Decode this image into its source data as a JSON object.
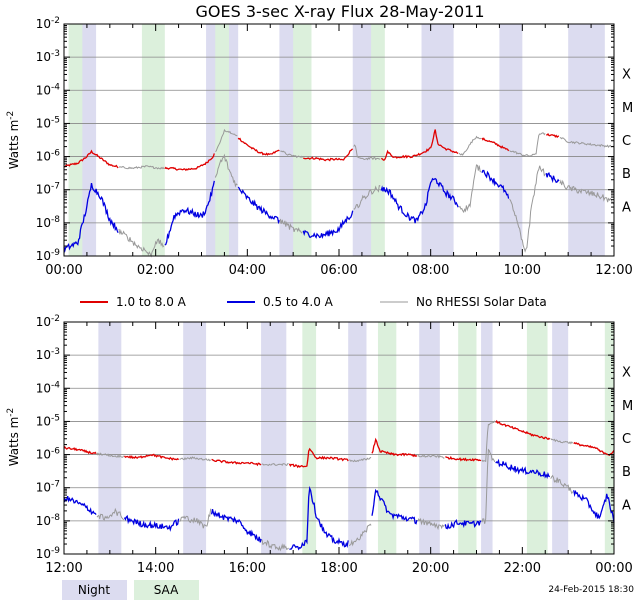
{
  "title": "GOES 3-sec X-ray Flux   28-May-2011",
  "footer_timestamp": "24-Feb-2015 18:30",
  "colors": {
    "long": "#e00000",
    "short": "#0000e0",
    "norhessi": "#999999",
    "night": "#dcdcf0",
    "saa": "#dcf0dc",
    "grid": "#888888"
  },
  "legend": {
    "long": "1.0 to 8.0 A",
    "short": "0.5 to 4.0 A",
    "norhessi": "No RHESSI Solar Data"
  },
  "bottom_legend": {
    "night": "Night",
    "saa": "SAA"
  },
  "chart_data": [
    {
      "type": "line",
      "panel": "top",
      "ylabel": "Watts m^-2",
      "ylim_exp": [
        -9,
        -2
      ],
      "y_ticks": [
        "10-9",
        "10-8",
        "10-7",
        "10-6",
        "10-5",
        "10-4",
        "10-3",
        "10-2"
      ],
      "xlim_hours": [
        0,
        12
      ],
      "x_ticks": [
        "00:00",
        "02:00",
        "04:00",
        "06:00",
        "08:00",
        "10:00",
        "12:00"
      ],
      "flare_classes": [
        "A",
        "B",
        "C",
        "M",
        "X"
      ],
      "night_intervals": [
        [
          0.15,
          0.7
        ],
        [
          3.1,
          3.8
        ],
        [
          4.7,
          5.3
        ],
        [
          6.3,
          6.8
        ],
        [
          7.8,
          8.5
        ],
        [
          9.5,
          10.0
        ],
        [
          11.0,
          11.8
        ]
      ],
      "saa_intervals": [
        [
          0.1,
          0.4
        ],
        [
          1.7,
          2.2
        ],
        [
          3.3,
          3.6
        ],
        [
          5.0,
          5.4
        ],
        [
          6.7,
          7.0
        ]
      ],
      "series": [
        {
          "name": "1.0 to 8.0 A",
          "key": "long",
          "x": [
            0.0,
            0.3,
            0.5,
            0.6,
            0.8,
            1.0,
            1.2,
            1.5,
            1.8,
            2.1,
            2.3,
            2.6,
            2.9,
            3.1,
            3.25,
            3.4,
            3.5,
            3.7,
            3.9,
            4.1,
            4.3,
            4.5,
            4.7,
            4.9,
            5.1,
            5.3,
            5.5,
            5.7,
            5.9,
            6.1,
            6.35,
            6.4,
            6.5,
            6.7,
            6.9,
            7.0,
            7.05,
            7.2,
            7.4,
            7.6,
            7.8,
            8.0,
            8.1,
            8.15,
            8.3,
            8.5,
            8.7,
            8.9,
            9.0,
            9.2,
            9.4,
            9.6,
            9.8,
            10.0,
            10.2,
            10.3,
            10.35,
            10.4,
            10.6,
            10.8,
            11.0,
            11.3,
            11.6,
            12.0
          ],
          "log10": [
            -6.3,
            -6.2,
            -6.0,
            -5.85,
            -6.05,
            -6.25,
            -6.32,
            -6.35,
            -6.3,
            -6.35,
            -6.35,
            -6.4,
            -6.35,
            -6.2,
            -6.0,
            -5.6,
            -5.2,
            -5.3,
            -5.55,
            -5.75,
            -5.9,
            -5.95,
            -5.8,
            -5.95,
            -6.0,
            -6.05,
            -6.05,
            -6.1,
            -6.08,
            -6.1,
            -5.65,
            -6.0,
            -6.08,
            -6.05,
            -6.07,
            -6.1,
            -5.85,
            -6.02,
            -6.0,
            -6.0,
            -5.9,
            -5.75,
            -5.2,
            -5.6,
            -5.75,
            -5.85,
            -5.95,
            -5.55,
            -5.4,
            -5.5,
            -5.6,
            -5.75,
            -5.85,
            -5.95,
            -5.98,
            -5.9,
            -5.4,
            -5.3,
            -5.35,
            -5.4,
            -5.55,
            -5.6,
            -5.65,
            -5.7
          ]
        },
        {
          "name": "0.5 to 4.0 A",
          "key": "short",
          "x": [
            0.0,
            0.3,
            0.5,
            0.6,
            0.8,
            1.0,
            1.2,
            1.4,
            1.6,
            1.75,
            1.9,
            2.0,
            2.1,
            2.2,
            2.25,
            2.4,
            2.6,
            2.8,
            3.0,
            3.1,
            3.2,
            3.3,
            3.4,
            3.5,
            3.6,
            3.7,
            3.8,
            4.0,
            4.2,
            4.4,
            4.6,
            4.8,
            5.0,
            5.2,
            5.4,
            5.6,
            5.8,
            6.0,
            6.1,
            6.3,
            6.5,
            6.7,
            6.9,
            7.1,
            7.3,
            7.5,
            7.7,
            7.9,
            8.0,
            8.1,
            8.15,
            8.3,
            8.5,
            8.7,
            8.85,
            9.0,
            9.2,
            9.4,
            9.6,
            9.8,
            9.95,
            10.0,
            10.05,
            10.1,
            10.2,
            10.3,
            10.35,
            10.4,
            10.45,
            10.6,
            10.8,
            11.0,
            11.3,
            11.6,
            11.8,
            12.0
          ],
          "log10": [
            -8.8,
            -8.6,
            -7.5,
            -6.85,
            -7.2,
            -7.9,
            -8.25,
            -8.45,
            -8.7,
            -8.8,
            -9.0,
            -8.55,
            -8.6,
            -8.7,
            -8.5,
            -7.8,
            -7.6,
            -7.7,
            -7.8,
            -7.6,
            -7.2,
            -6.7,
            -6.2,
            -6.0,
            -6.4,
            -6.7,
            -6.95,
            -7.25,
            -7.5,
            -7.7,
            -7.85,
            -8.0,
            -8.2,
            -8.3,
            -8.35,
            -8.4,
            -8.3,
            -8.2,
            -8.0,
            -7.7,
            -7.3,
            -7.05,
            -6.95,
            -7.05,
            -7.5,
            -7.8,
            -7.95,
            -7.45,
            -6.75,
            -6.7,
            -6.75,
            -7.05,
            -7.3,
            -7.6,
            -7.5,
            -6.3,
            -6.5,
            -6.75,
            -7.0,
            -7.55,
            -8.3,
            -8.6,
            -8.9,
            -8.7,
            -7.5,
            -6.8,
            -6.3,
            -6.4,
            -6.45,
            -6.6,
            -6.75,
            -6.95,
            -7.05,
            -7.15,
            -7.25,
            -7.4
          ]
        },
        {
          "name": "No RHESSI Solar Data",
          "key": "norhessi",
          "x_intervals": [
            [
              1.2,
              2.2
            ],
            [
              3.3,
              3.8
            ],
            [
              4.7,
              5.2
            ],
            [
              6.3,
              6.9
            ],
            [
              8.6,
              9.1
            ],
            [
              9.7,
              10.5
            ],
            [
              10.8,
              12.0
            ]
          ],
          "sampled_from": "long"
        }
      ]
    },
    {
      "type": "line",
      "panel": "bottom",
      "ylabel": "Watts m^-2",
      "ylim_exp": [
        -9,
        -2
      ],
      "y_ticks": [
        "10-9",
        "10-8",
        "10-7",
        "10-6",
        "10-5",
        "10-4",
        "10-3",
        "10-2"
      ],
      "xlim_hours": [
        12,
        24
      ],
      "x_ticks": [
        "12:00",
        "14:00",
        "16:00",
        "18:00",
        "20:00",
        "22:00",
        "00:00"
      ],
      "flare_classes": [
        "A",
        "B",
        "C",
        "M",
        "X"
      ],
      "night_intervals": [
        [
          12.75,
          13.25
        ],
        [
          14.6,
          15.1
        ],
        [
          16.3,
          16.85
        ],
        [
          18.2,
          18.6
        ],
        [
          19.75,
          20.2
        ],
        [
          21.1,
          21.35
        ],
        [
          22.65,
          23.0
        ]
      ],
      "saa_intervals": [
        [
          17.2,
          17.5
        ],
        [
          18.85,
          19.25
        ],
        [
          20.6,
          21.0
        ],
        [
          22.1,
          22.55
        ],
        [
          23.8,
          24.0
        ]
      ],
      "series": [
        {
          "name": "1.0 to 8.0 A",
          "key": "long",
          "x": [
            12.0,
            12.3,
            12.6,
            12.9,
            13.1,
            13.3,
            13.6,
            13.9,
            14.2,
            14.5,
            14.8,
            15.1,
            15.4,
            15.7,
            16.0,
            16.3,
            16.6,
            16.9,
            17.1,
            17.3,
            17.35,
            17.5,
            17.8,
            18.1,
            18.4,
            18.7,
            18.8,
            18.9,
            19.2,
            19.5,
            19.8,
            20.1,
            20.4,
            20.7,
            21.0,
            21.2,
            21.25,
            21.4,
            21.6,
            21.8,
            22.0,
            22.2,
            22.5,
            22.8,
            23.1,
            23.4,
            23.6,
            23.7,
            23.9,
            24.0
          ],
          "log10": [
            -5.8,
            -5.85,
            -5.95,
            -6.0,
            -6.05,
            -6.05,
            -6.1,
            -6.0,
            -6.1,
            -6.15,
            -6.1,
            -6.15,
            -6.2,
            -6.25,
            -6.25,
            -6.3,
            -6.3,
            -6.3,
            -6.35,
            -6.35,
            -5.8,
            -6.1,
            -6.1,
            -6.15,
            -6.2,
            -6.1,
            -5.55,
            -5.9,
            -6.0,
            -6.0,
            -6.05,
            -6.05,
            -6.1,
            -6.15,
            -6.15,
            -6.2,
            -5.1,
            -5.0,
            -5.1,
            -5.2,
            -5.3,
            -5.4,
            -5.5,
            -5.6,
            -5.65,
            -5.75,
            -5.8,
            -5.9,
            -6.0,
            -5.9
          ]
        },
        {
          "name": "0.5 to 4.0 A",
          "key": "short",
          "x": [
            12.0,
            12.2,
            12.5,
            12.7,
            12.9,
            13.1,
            13.3,
            13.5,
            13.7,
            14.0,
            14.3,
            14.6,
            14.9,
            15.1,
            15.2,
            15.5,
            15.8,
            16.0,
            16.3,
            16.6,
            16.9,
            17.1,
            17.3,
            17.35,
            17.5,
            17.7,
            17.9,
            18.1,
            18.4,
            18.7,
            18.8,
            18.9,
            19.1,
            19.4,
            19.7,
            20.0,
            20.3,
            20.6,
            20.9,
            21.2,
            21.25,
            21.4,
            21.6,
            21.8,
            22.0,
            22.2,
            22.5,
            22.8,
            23.1,
            23.4,
            23.6,
            23.7,
            23.85,
            24.0
          ],
          "log10": [
            -7.3,
            -7.4,
            -7.6,
            -7.8,
            -7.95,
            -7.7,
            -7.9,
            -8.0,
            -8.1,
            -8.15,
            -8.2,
            -7.9,
            -8.0,
            -8.2,
            -7.7,
            -7.9,
            -8.0,
            -8.3,
            -8.6,
            -8.8,
            -8.8,
            -8.8,
            -8.6,
            -6.9,
            -7.8,
            -8.4,
            -8.6,
            -8.7,
            -8.6,
            -8.1,
            -7.0,
            -7.3,
            -7.8,
            -7.9,
            -8.0,
            -8.1,
            -8.2,
            -8.05,
            -8.1,
            -8.0,
            -5.9,
            -6.2,
            -6.3,
            -6.4,
            -6.5,
            -6.5,
            -6.6,
            -6.8,
            -7.1,
            -7.4,
            -7.8,
            -7.9,
            -7.2,
            -8.0
          ]
        },
        {
          "name": "No RHESSI Solar Data",
          "key": "norhessi",
          "x_intervals": [
            [
              12.7,
              13.3
            ],
            [
              14.5,
              15.2
            ],
            [
              16.3,
              16.9
            ],
            [
              18.2,
              18.7
            ],
            [
              19.7,
              20.3
            ],
            [
              21.1,
              21.4
            ],
            [
              22.6,
              23.1
            ]
          ],
          "sampled_from": "long"
        }
      ]
    }
  ]
}
